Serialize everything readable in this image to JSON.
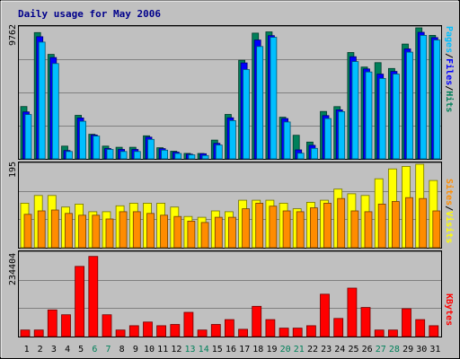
{
  "chart_data": {
    "type": "bar",
    "title": "Daily usage for May 2006",
    "colors": {
      "page_background": "#c0c0c0",
      "plot_background": "#c0c0c0",
      "frame": "#000000",
      "gridline": "#808080",
      "title": "#00008b",
      "weekday_label": "#000000",
      "weekend_label": "#00805a",
      "hits": "#00805a",
      "files": "#0000ff",
      "pages": "#00bfff",
      "visits": "#ffff00",
      "sites": "#ff8c00",
      "kbytes": "#ff0000"
    },
    "days": [
      "1",
      "2",
      "3",
      "4",
      "5",
      "6",
      "7",
      "8",
      "9",
      "10",
      "11",
      "12",
      "13",
      "14",
      "15",
      "16",
      "17",
      "18",
      "19",
      "20",
      "21",
      "22",
      "23",
      "24",
      "25",
      "26",
      "27",
      "28",
      "29",
      "30",
      "31"
    ],
    "weekend_days": [
      "6",
      "7",
      "13",
      "14",
      "20",
      "21",
      "27",
      "28"
    ],
    "panels": [
      {
        "id": "hits-files-pages",
        "max_label": "9762",
        "ymax": 9762,
        "side_label": [
          "Pages",
          "Files",
          "Hits"
        ],
        "side_label_colors": [
          "#00bfff",
          "#0000ff",
          "#00805a"
        ],
        "series": [
          {
            "name": "Hits",
            "color": "#00805a",
            "values": [
              3900,
              9410,
              7780,
              950,
              3240,
              1830,
              950,
              860,
              860,
              1720,
              830,
              570,
              410,
              400,
              1400,
              3310,
              7340,
              9370,
              9460,
              3100,
              1760,
              1250,
              3530,
              3890,
              7920,
              6840,
              7170,
              6730,
              8550,
              9760,
              9200
            ]
          },
          {
            "name": "Files",
            "color": "#0000ff",
            "values": [
              3500,
              9100,
              7550,
              620,
              3050,
              1780,
              770,
              700,
              700,
              1620,
              760,
              500,
              350,
              380,
              1160,
              3060,
              7150,
              8850,
              9180,
              3000,
              670,
              1010,
              3220,
              3650,
              7610,
              6700,
              6310,
              6510,
              8190,
              9430,
              9030
            ]
          },
          {
            "name": "Pages",
            "color": "#00bfff",
            "values": [
              3300,
              8700,
              7100,
              550,
              2800,
              1700,
              700,
              550,
              550,
              1450,
              650,
              400,
              300,
              250,
              1030,
              2850,
              6650,
              8370,
              9050,
              2750,
              420,
              780,
              3000,
              3520,
              7250,
              6470,
              5990,
              6320,
              7950,
              9200,
              8850
            ]
          }
        ]
      },
      {
        "id": "visits-sites",
        "max_label": "195",
        "ymax": 195,
        "side_label": [
          "Sites",
          "Visits"
        ],
        "side_label_colors": [
          "#ff8c00",
          "#ffff00"
        ],
        "series": [
          {
            "name": "Visits",
            "color": "#ffff00",
            "values": [
              104,
              122,
              122,
              95,
              102,
              84,
              84,
              98,
              104,
              104,
              104,
              95,
              73,
              71,
              86,
              84,
              111,
              111,
              111,
              104,
              91,
              106,
              111,
              137,
              126,
              122,
              161,
              184,
              190,
              195,
              157
            ]
          },
          {
            "name": "Sites",
            "color": "#ff8c00",
            "values": [
              78,
              86,
              88,
              80,
              76,
              76,
              67,
              84,
              84,
              80,
              76,
              73,
              62,
              59,
              71,
              71,
              91,
              104,
              97,
              86,
              84,
              93,
              104,
              115,
              86,
              84,
              102,
              108,
              117,
              115,
              86
            ]
          }
        ]
      },
      {
        "id": "kbytes",
        "max_label": "234404",
        "ymax": 234404,
        "side_label": [
          "KBytes"
        ],
        "side_label_colors": [
          "#ff0000"
        ],
        "series": [
          {
            "name": "KBytes",
            "color": "#ff0000",
            "values": [
              18400,
              18400,
              74800,
              61200,
              197000,
              225000,
              61200,
              18400,
              30600,
              40800,
              30600,
              34000,
              68000,
              18400,
              34000,
              47600,
              20400,
              85000,
              47600,
              23800,
              23800,
              30600,
              119000,
              51000,
              136000,
              81600,
              18400,
              18400,
              78200,
              47600,
              30600
            ]
          }
        ]
      }
    ]
  }
}
